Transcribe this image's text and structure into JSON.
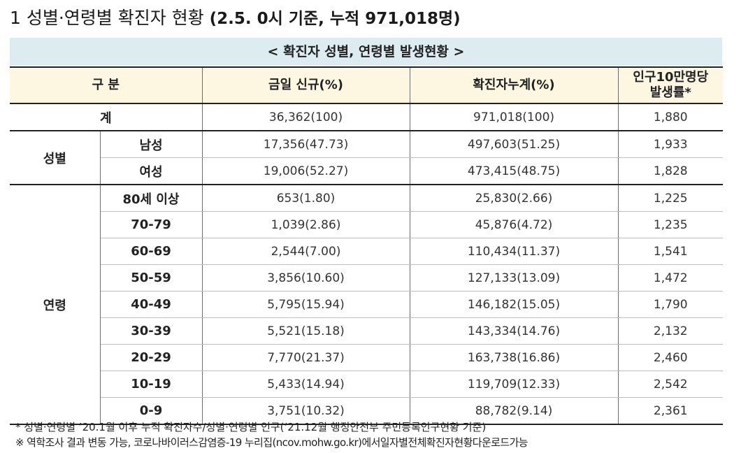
{
  "title": {
    "number": "1",
    "main": "성별·연령별 확진자 현황",
    "sub": "(2.5. 0시 기준, 누적 971,018명)"
  },
  "table": {
    "caption": "< 확진자 성별, 연령별 발생현황 >",
    "headers": {
      "category": "구 분",
      "new_today": "금일 신규(%)",
      "cumulative": "확진자누계(%)",
      "rate_line1": "인구10만명당",
      "rate_line2": "발생률*"
    },
    "total": {
      "label": "계",
      "new": "36,362(100)",
      "cum": "971,018(100)",
      "rate": "1,880"
    },
    "sex": {
      "group": "성별",
      "rows": [
        {
          "label": "남성",
          "new": "17,356(47.73)",
          "cum": "497,603(51.25)",
          "rate": "1,933"
        },
        {
          "label": "여성",
          "new": "19,006(52.27)",
          "cum": "473,415(48.75)",
          "rate": "1,828"
        }
      ]
    },
    "age": {
      "group": "연령",
      "rows": [
        {
          "label": "80세 이상",
          "new": "653(1.80)",
          "cum": "25,830(2.66)",
          "rate": "1,225"
        },
        {
          "label": "70-79",
          "new": "1,039(2.86)",
          "cum": "45,876(4.72)",
          "rate": "1,235"
        },
        {
          "label": "60-69",
          "new": "2,544(7.00)",
          "cum": "110,434(11.37)",
          "rate": "1,541"
        },
        {
          "label": "50-59",
          "new": "3,856(10.60)",
          "cum": "127,133(13.09)",
          "rate": "1,472"
        },
        {
          "label": "40-49",
          "new": "5,795(15.94)",
          "cum": "146,182(15.05)",
          "rate": "1,790"
        },
        {
          "label": "30-39",
          "new": "5,521(15.18)",
          "cum": "143,334(14.76)",
          "rate": "2,132"
        },
        {
          "label": "20-29",
          "new": "7,770(21.37)",
          "cum": "163,738(16.86)",
          "rate": "2,460"
        },
        {
          "label": "10-19",
          "new": "5,433(14.94)",
          "cum": "119,709(12.33)",
          "rate": "2,542"
        },
        {
          "label": "0-9",
          "new": "3,751(10.32)",
          "cum": "88,782(9.14)",
          "rate": "2,361"
        }
      ]
    }
  },
  "footnotes": {
    "note1": "* 성별·연령별 ’20.1월 이후 누적 확진자수/성별·연령별 인구(‘21.12월 행정안전부 주민등록인구현황 기준)",
    "note2": "※ 역학조사 결과 변동 가능, 코로나바이러스감염증-19 누리집(ncov.mohw.go.kr)에서일자별전체확진자현황다운로드가능"
  },
  "colors": {
    "caption_bg": "#dcecf1",
    "header_bg": "#fdf7e1"
  }
}
